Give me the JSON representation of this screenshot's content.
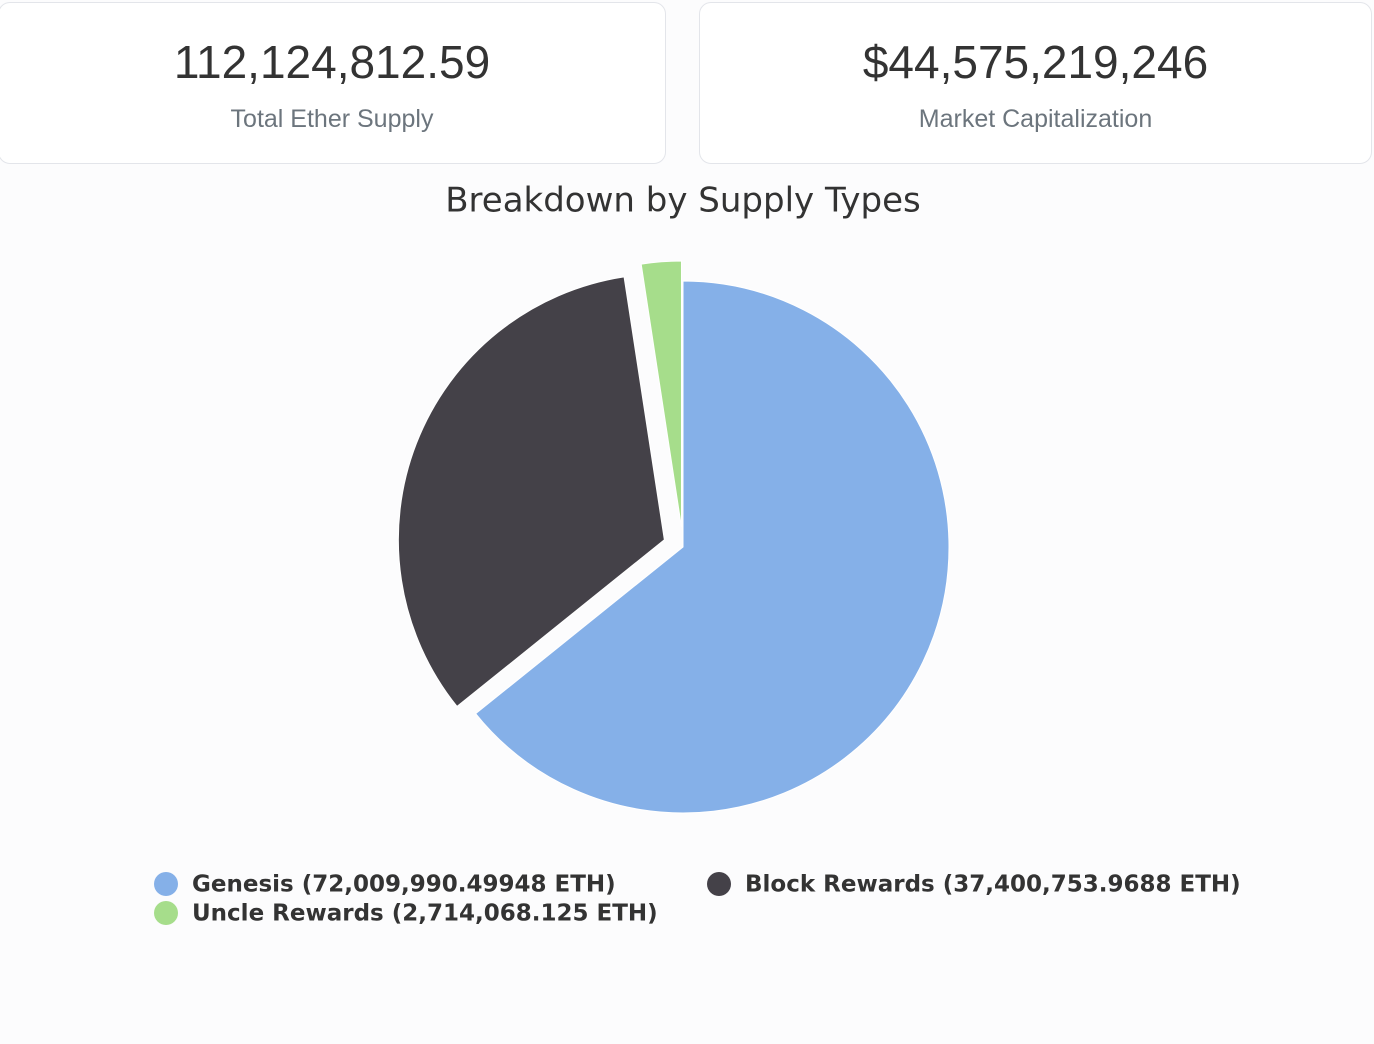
{
  "stats": [
    {
      "value": "112,124,812.59",
      "label": "Total Ether Supply"
    },
    {
      "value": "$44,575,219,246",
      "label": "Market Capitalization"
    }
  ],
  "chart_data": {
    "type": "pie",
    "title": "Breakdown by Supply Types",
    "categories": [
      "Genesis (72,009,990.49948 ETH)",
      "Block Rewards (37,400,753.9688 ETH)",
      "Uncle Rewards (2,714,068.125 ETH)"
    ],
    "values": [
      72009990.49948,
      37400753.9688,
      2714068.125
    ],
    "colors": [
      "#85b0e8",
      "#444148",
      "#a6dd8b"
    ]
  }
}
